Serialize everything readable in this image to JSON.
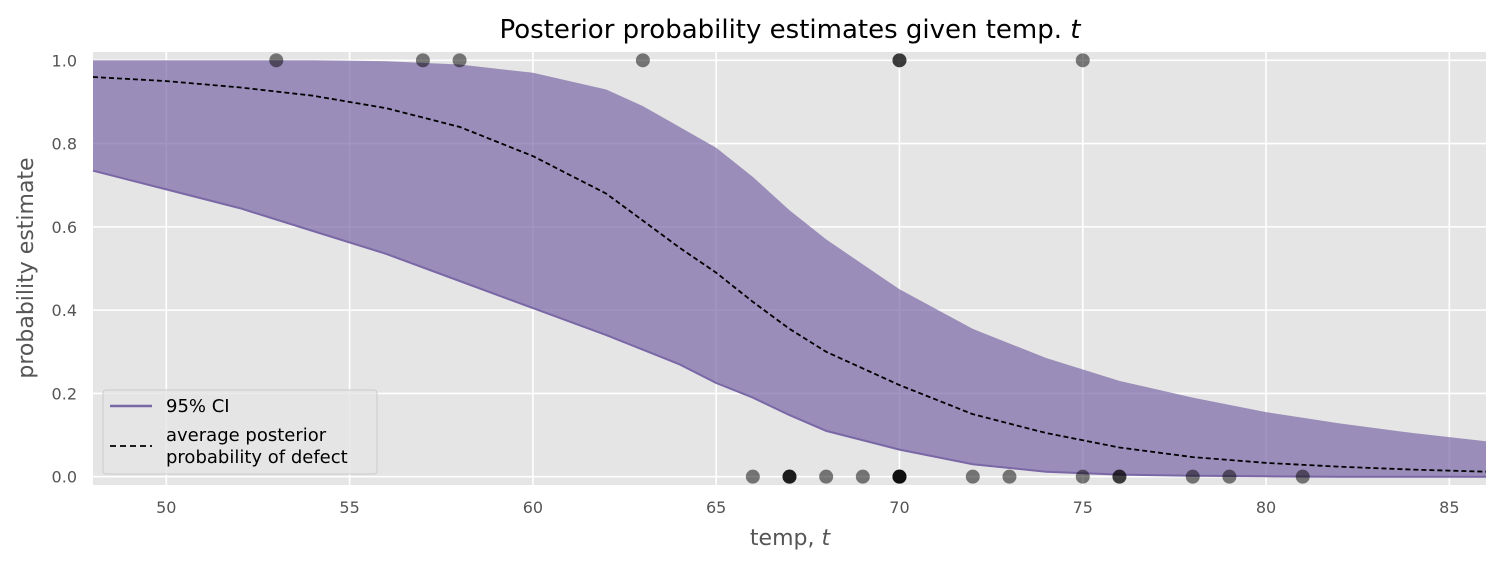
{
  "chart_data": {
    "type": "line",
    "title_main": "Posterior probability estimates given temp. ",
    "title_var": "t",
    "xlabel_main": "temp, ",
    "xlabel_var": "t",
    "ylabel": "probability estimate",
    "xlim": [
      48,
      86
    ],
    "ylim": [
      -0.02,
      1.02
    ],
    "x_ticks": [
      50,
      55,
      60,
      65,
      70,
      75,
      80,
      85
    ],
    "y_ticks": [
      0.0,
      0.2,
      0.4,
      0.6,
      0.8,
      1.0
    ],
    "x_tick_labels": [
      "50",
      "55",
      "60",
      "65",
      "70",
      "75",
      "80",
      "85"
    ],
    "y_tick_labels": [
      "0.0",
      "0.2",
      "0.4",
      "0.6",
      "0.8",
      "1.0"
    ],
    "grid": true,
    "legend_position": "lower-left",
    "legend": {
      "ci_label": "95% CI",
      "mean_label_line1": "average posterior",
      "mean_label_line2": "probability of defect"
    },
    "colors": {
      "band": "#7A68A6",
      "mean_line": "#000000",
      "points": "#000000",
      "background": "#E5E5E5",
      "grid": "#FFFFFF"
    },
    "x": [
      48,
      50,
      52,
      54,
      56,
      58,
      60,
      62,
      63,
      64,
      65,
      66,
      67,
      68,
      70,
      72,
      74,
      76,
      78,
      80,
      82,
      84,
      86
    ],
    "series": [
      {
        "name": "95% CI",
        "kind": "band",
        "upper": [
          1.0,
          1.0,
          1.0,
          1.0,
          0.998,
          0.99,
          0.97,
          0.93,
          0.89,
          0.84,
          0.79,
          0.72,
          0.64,
          0.57,
          0.45,
          0.355,
          0.285,
          0.23,
          0.19,
          0.155,
          0.128,
          0.105,
          0.085
        ],
        "lower": [
          0.735,
          0.69,
          0.645,
          0.59,
          0.535,
          0.47,
          0.405,
          0.34,
          0.305,
          0.27,
          0.225,
          0.19,
          0.148,
          0.11,
          0.065,
          0.03,
          0.012,
          0.005,
          0.002,
          0.001,
          0.0,
          0.0,
          0.0
        ]
      },
      {
        "name": "average posterior probability of defect",
        "kind": "line",
        "values": [
          0.96,
          0.95,
          0.935,
          0.915,
          0.885,
          0.84,
          0.77,
          0.68,
          0.615,
          0.55,
          0.49,
          0.42,
          0.355,
          0.3,
          0.22,
          0.15,
          0.105,
          0.07,
          0.047,
          0.033,
          0.024,
          0.017,
          0.012
        ]
      }
    ],
    "observations": {
      "defect_1": [
        53,
        57,
        58,
        63,
        70,
        70,
        75
      ],
      "defect_0": [
        66,
        67,
        67,
        67,
        68,
        69,
        70,
        70,
        70,
        70,
        72,
        73,
        75,
        76,
        76,
        78,
        79,
        81
      ]
    }
  }
}
